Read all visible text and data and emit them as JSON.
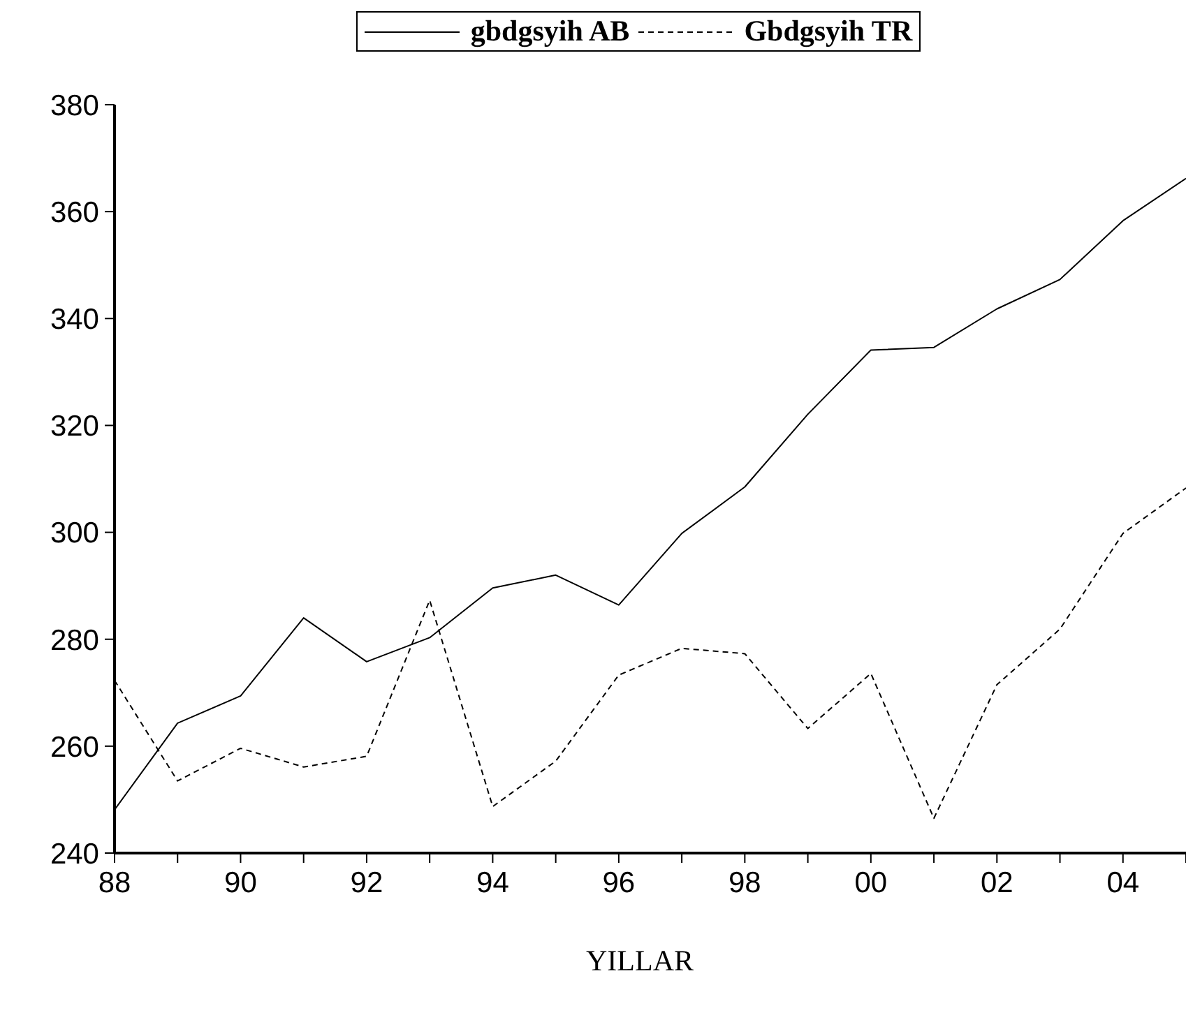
{
  "chart_data": {
    "type": "line",
    "xlabel": "YILLAR",
    "x": [
      1988,
      1989,
      1990,
      1991,
      1992,
      1993,
      1994,
      1995,
      1996,
      1997,
      1998,
      1999,
      2000,
      2001,
      2002,
      2003,
      2004,
      2005
    ],
    "series": [
      {
        "name": "gbdgsyih AB",
        "color": "#000000",
        "line_style": "solid",
        "values": [
          248.1,
          264.3,
          269.4,
          284,
          275.8,
          280.3,
          289.6,
          292,
          286.4,
          299.8,
          308.5,
          322.1,
          334.1,
          334.6,
          341.8,
          347.3,
          358.3,
          366.2
        ]
      },
      {
        "name": "Gbdgsyih TR",
        "color": "#000000",
        "line_style": "dashed",
        "values": [
          272.3,
          253.5,
          259.6,
          256.1,
          258.1,
          287.3,
          248.7,
          257.2,
          273.3,
          278.3,
          277.3,
          263.3,
          273.6,
          246.5,
          271.5,
          281.9,
          299.8,
          308.3
        ]
      }
    ],
    "xlim": [
      1988,
      2005
    ],
    "xticks": [
      {
        "value": 1988,
        "label": "88"
      },
      {
        "value": 1989,
        "label": null
      },
      {
        "value": 1990,
        "label": "90"
      },
      {
        "value": 1991,
        "label": null
      },
      {
        "value": 1992,
        "label": "92"
      },
      {
        "value": 1993,
        "label": null
      },
      {
        "value": 1994,
        "label": "94"
      },
      {
        "value": 1995,
        "label": null
      },
      {
        "value": 1996,
        "label": "96"
      },
      {
        "value": 1997,
        "label": null
      },
      {
        "value": 1998,
        "label": "98"
      },
      {
        "value": 1999,
        "label": null
      },
      {
        "value": 2000,
        "label": "00"
      },
      {
        "value": 2001,
        "label": null
      },
      {
        "value": 2002,
        "label": "02"
      },
      {
        "value": 2003,
        "label": null
      },
      {
        "value": 2004,
        "label": "04"
      },
      {
        "value": 2005,
        "label": null
      }
    ],
    "ylim": [
      240,
      380
    ],
    "yticks": [
      240,
      260,
      280,
      300,
      320,
      340,
      360,
      380
    ],
    "grid": false,
    "legend": "top",
    "marker": "none"
  }
}
